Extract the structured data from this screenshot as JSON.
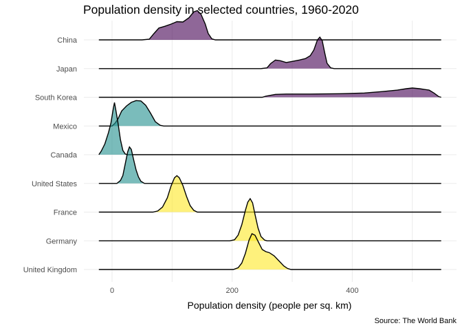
{
  "chart_data": {
    "type": "ridgeline",
    "title": "Population density in selected countries, 1960-2020",
    "xlabel": "Population density (people per sq. km)",
    "ylabel": "",
    "caption": "Source: The World Bank",
    "xlim": [
      -22,
      548
    ],
    "x_ticks": [
      0,
      200,
      400
    ],
    "grid": true,
    "colors": {
      "low": "#21908d",
      "high": "#fde725",
      "mid": "#440154"
    },
    "series": [
      {
        "name": "China",
        "color": "#440154",
        "opacity": 0.6,
        "points": [
          [
            -22,
            0
          ],
          [
            50,
            0
          ],
          [
            62,
            0.02
          ],
          [
            70,
            0.18
          ],
          [
            78,
            0.33
          ],
          [
            88,
            0.38
          ],
          [
            98,
            0.44
          ],
          [
            108,
            0.51
          ],
          [
            118,
            0.5
          ],
          [
            128,
            0.62
          ],
          [
            136,
            0.78
          ],
          [
            142,
            0.82
          ],
          [
            148,
            0.72
          ],
          [
            155,
            0.45
          ],
          [
            160,
            0.18
          ],
          [
            166,
            0.03
          ],
          [
            172,
            0
          ],
          [
            548,
            0
          ]
        ]
      },
      {
        "name": "Japan",
        "color": "#440154",
        "opacity": 0.6,
        "points": [
          [
            -22,
            0
          ],
          [
            248,
            0
          ],
          [
            258,
            0.02
          ],
          [
            264,
            0.14
          ],
          [
            272,
            0.24
          ],
          [
            280,
            0.22
          ],
          [
            290,
            0.17
          ],
          [
            300,
            0.2
          ],
          [
            312,
            0.24
          ],
          [
            322,
            0.28
          ],
          [
            330,
            0.36
          ],
          [
            336,
            0.52
          ],
          [
            342,
            0.8
          ],
          [
            346,
            0.88
          ],
          [
            350,
            0.78
          ],
          [
            354,
            0.45
          ],
          [
            358,
            0.15
          ],
          [
            364,
            0.02
          ],
          [
            370,
            0
          ],
          [
            548,
            0
          ]
        ]
      },
      {
        "name": "South Korea",
        "color": "#440154",
        "opacity": 0.6,
        "points": [
          [
            -22,
            0
          ],
          [
            250,
            0
          ],
          [
            256,
            0.03
          ],
          [
            262,
            0.05
          ],
          [
            272,
            0.08
          ],
          [
            290,
            0.09
          ],
          [
            330,
            0.09
          ],
          [
            380,
            0.1
          ],
          [
            420,
            0.12
          ],
          [
            450,
            0.16
          ],
          [
            475,
            0.2
          ],
          [
            490,
            0.24
          ],
          [
            500,
            0.26
          ],
          [
            512,
            0.24
          ],
          [
            520,
            0.22
          ],
          [
            528,
            0.2
          ],
          [
            536,
            0.12
          ],
          [
            544,
            0.02
          ],
          [
            548,
            0
          ]
        ]
      },
      {
        "name": "Mexico",
        "color": "#21908d",
        "opacity": 0.6,
        "points": [
          [
            -22,
            0
          ],
          [
            0,
            0
          ],
          [
            5,
            0.08
          ],
          [
            10,
            0.2
          ],
          [
            16,
            0.42
          ],
          [
            24,
            0.56
          ],
          [
            32,
            0.66
          ],
          [
            40,
            0.71
          ],
          [
            48,
            0.7
          ],
          [
            56,
            0.58
          ],
          [
            64,
            0.36
          ],
          [
            72,
            0.12
          ],
          [
            80,
            0.02
          ],
          [
            86,
            0
          ],
          [
            548,
            0
          ]
        ]
      },
      {
        "name": "Canada",
        "color": "#21908d",
        "opacity": 0.6,
        "points": [
          [
            -22,
            0
          ],
          [
            -18,
            0.1
          ],
          [
            -12,
            0.3
          ],
          [
            -6,
            0.62
          ],
          [
            -2,
            0.88
          ],
          [
            2,
            1.28
          ],
          [
            4,
            1.46
          ],
          [
            6,
            1.28
          ],
          [
            10,
            0.88
          ],
          [
            14,
            0.42
          ],
          [
            18,
            0.12
          ],
          [
            22,
            0.02
          ],
          [
            26,
            0
          ],
          [
            548,
            0
          ]
        ]
      },
      {
        "name": "United States",
        "color": "#21908d",
        "opacity": 0.6,
        "points": [
          [
            -22,
            0
          ],
          [
            8,
            0
          ],
          [
            14,
            0.08
          ],
          [
            18,
            0.22
          ],
          [
            22,
            0.55
          ],
          [
            26,
            0.88
          ],
          [
            29,
            1.02
          ],
          [
            32,
            0.95
          ],
          [
            36,
            0.66
          ],
          [
            40,
            0.38
          ],
          [
            44,
            0.18
          ],
          [
            48,
            0.06
          ],
          [
            54,
            0
          ],
          [
            548,
            0
          ]
        ]
      },
      {
        "name": "France",
        "color": "#fde725",
        "opacity": 0.6,
        "points": [
          [
            -22,
            0
          ],
          [
            68,
            0
          ],
          [
            76,
            0.03
          ],
          [
            84,
            0.14
          ],
          [
            92,
            0.4
          ],
          [
            98,
            0.72
          ],
          [
            104,
            0.96
          ],
          [
            108,
            1.02
          ],
          [
            112,
            0.96
          ],
          [
            118,
            0.74
          ],
          [
            124,
            0.44
          ],
          [
            130,
            0.18
          ],
          [
            136,
            0.05
          ],
          [
            142,
            0
          ],
          [
            548,
            0
          ]
        ]
      },
      {
        "name": "Germany",
        "color": "#fde725",
        "opacity": 0.6,
        "points": [
          [
            -22,
            0
          ],
          [
            196,
            0
          ],
          [
            204,
            0.03
          ],
          [
            210,
            0.16
          ],
          [
            216,
            0.45
          ],
          [
            222,
            0.85
          ],
          [
            226,
            1.08
          ],
          [
            230,
            1.18
          ],
          [
            234,
            1.06
          ],
          [
            238,
            0.74
          ],
          [
            243,
            0.36
          ],
          [
            248,
            0.12
          ],
          [
            254,
            0.02
          ],
          [
            258,
            0
          ],
          [
            548,
            0
          ]
        ]
      },
      {
        "name": "United Kingdom",
        "color": "#fde725",
        "opacity": 0.6,
        "points": [
          [
            -22,
            0
          ],
          [
            202,
            0
          ],
          [
            210,
            0.05
          ],
          [
            216,
            0.18
          ],
          [
            222,
            0.45
          ],
          [
            228,
            0.82
          ],
          [
            233,
            1.0
          ],
          [
            238,
            0.96
          ],
          [
            244,
            0.76
          ],
          [
            250,
            0.56
          ],
          [
            256,
            0.5
          ],
          [
            262,
            0.47
          ],
          [
            270,
            0.38
          ],
          [
            278,
            0.24
          ],
          [
            286,
            0.1
          ],
          [
            292,
            0.03
          ],
          [
            298,
            0
          ],
          [
            548,
            0
          ]
        ]
      }
    ]
  }
}
